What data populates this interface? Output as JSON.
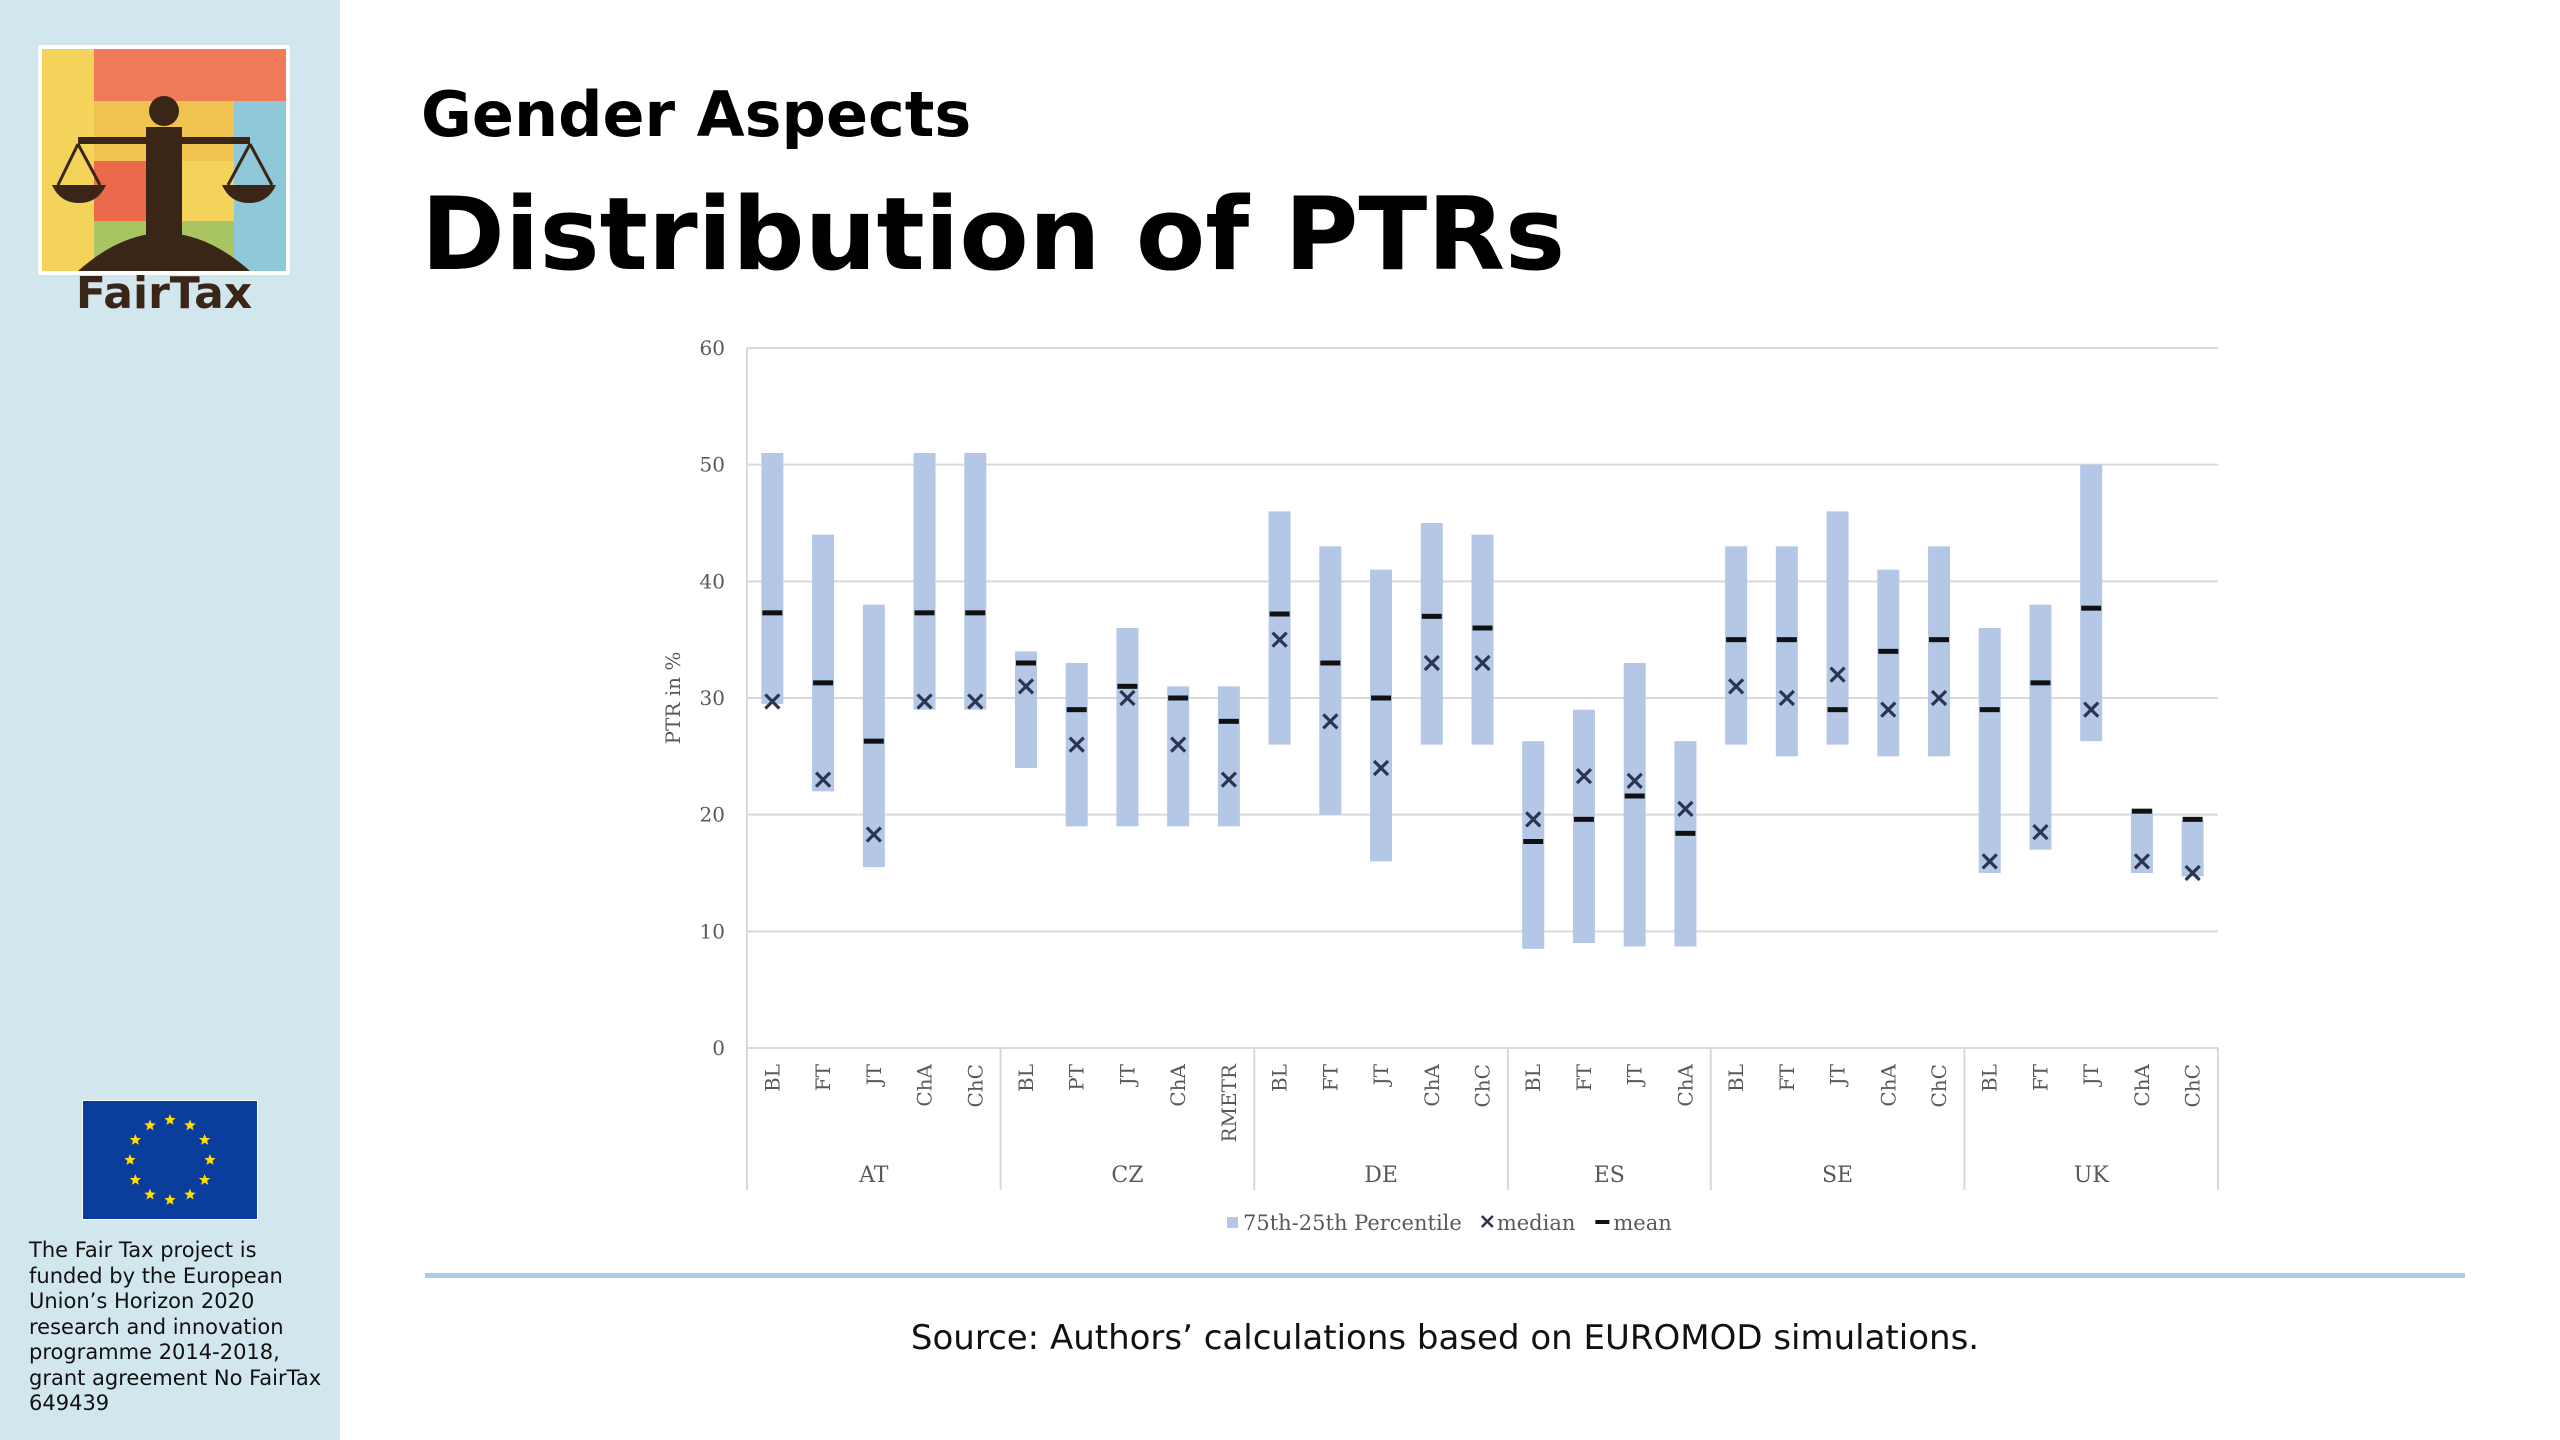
{
  "logo": {
    "name": "FairTax"
  },
  "header": {
    "subtitle": "Gender Aspects",
    "title": "Distribution of PTRs"
  },
  "funding": {
    "text": "The Fair Tax project is funded by the European Union’s Horizon 2020 research and innovation programme 2014-2018, grant agreement No FairTax 649439"
  },
  "source": "Source: Authors’ calculations based on EUROMOD simulations.",
  "colors": {
    "sidebar": "#d2e6ee",
    "bar": "#b4c7e7",
    "marker": "#2b3550",
    "divider": "#a7cfdf"
  },
  "chart_data": {
    "type": "box",
    "ylabel": "PTR in %",
    "ylim": [
      0,
      60
    ],
    "yticks": [
      0,
      10,
      20,
      30,
      40,
      50,
      60
    ],
    "legend": [
      {
        "label": "75th-25th Percentile",
        "symbol": "bar"
      },
      {
        "label": "median",
        "symbol": "x"
      },
      {
        "label": "mean",
        "symbol": "dash"
      }
    ],
    "groups": [
      {
        "name": "AT",
        "items": [
          {
            "label": "BL",
            "q1": 29.5,
            "q3": 51.0,
            "median": 29.7,
            "mean": 37.3
          },
          {
            "label": "FT",
            "q1": 22.0,
            "q3": 44.0,
            "median": 23.0,
            "mean": 31.3
          },
          {
            "label": "JT",
            "q1": 15.5,
            "q3": 38.0,
            "median": 18.3,
            "mean": 26.3
          },
          {
            "label": "ChA",
            "q1": 29.0,
            "q3": 51.0,
            "median": 29.7,
            "mean": 37.3
          },
          {
            "label": "ChC",
            "q1": 29.0,
            "q3": 51.0,
            "median": 29.7,
            "mean": 37.3
          }
        ]
      },
      {
        "name": "CZ",
        "items": [
          {
            "label": "BL",
            "q1": 24.0,
            "q3": 34.0,
            "median": 31.0,
            "mean": 33.0
          },
          {
            "label": "PT",
            "q1": 19.0,
            "q3": 33.0,
            "median": 26.0,
            "mean": 29.0
          },
          {
            "label": "JT",
            "q1": 19.0,
            "q3": 36.0,
            "median": 30.0,
            "mean": 31.0
          },
          {
            "label": "ChA",
            "q1": 19.0,
            "q3": 31.0,
            "median": 26.0,
            "mean": 30.0
          },
          {
            "label": "RMETR",
            "q1": 19.0,
            "q3": 31.0,
            "median": 23.0,
            "mean": 28.0
          }
        ]
      },
      {
        "name": "DE",
        "items": [
          {
            "label": "BL",
            "q1": 26.0,
            "q3": 46.0,
            "median": 35.0,
            "mean": 37.2
          },
          {
            "label": "FT",
            "q1": 20.0,
            "q3": 43.0,
            "median": 28.0,
            "mean": 33.0
          },
          {
            "label": "JT",
            "q1": 16.0,
            "q3": 41.0,
            "median": 24.0,
            "mean": 30.0
          },
          {
            "label": "ChA",
            "q1": 26.0,
            "q3": 45.0,
            "median": 33.0,
            "mean": 37.0
          },
          {
            "label": "ChC",
            "q1": 26.0,
            "q3": 44.0,
            "median": 33.0,
            "mean": 36.0
          }
        ]
      },
      {
        "name": "ES",
        "items": [
          {
            "label": "BL",
            "q1": 8.5,
            "q3": 26.3,
            "median": 19.6,
            "mean": 17.7
          },
          {
            "label": "FT",
            "q1": 9.0,
            "q3": 29.0,
            "median": 23.3,
            "mean": 19.6
          },
          {
            "label": "JT",
            "q1": 8.7,
            "q3": 33.0,
            "median": 22.9,
            "mean": 21.6
          },
          {
            "label": "ChA",
            "q1": 8.7,
            "q3": 26.3,
            "median": 20.5,
            "mean": 18.4
          }
        ]
      },
      {
        "name": "SE",
        "items": [
          {
            "label": "BL",
            "q1": 26.0,
            "q3": 43.0,
            "median": 31.0,
            "mean": 35.0
          },
          {
            "label": "FT",
            "q1": 25.0,
            "q3": 43.0,
            "median": 30.0,
            "mean": 35.0
          },
          {
            "label": "JT",
            "q1": 26.0,
            "q3": 46.0,
            "median": 32.0,
            "mean": 29.0
          },
          {
            "label": "ChA",
            "q1": 25.0,
            "q3": 41.0,
            "median": 29.0,
            "mean": 34.0
          },
          {
            "label": "ChC",
            "q1": 25.0,
            "q3": 43.0,
            "median": 30.0,
            "mean": 35.0
          }
        ]
      },
      {
        "name": "UK",
        "items": [
          {
            "label": "BL",
            "q1": 15.0,
            "q3": 36.0,
            "median": 16.0,
            "mean": 29.0
          },
          {
            "label": "FT",
            "q1": 17.0,
            "q3": 38.0,
            "median": 18.5,
            "mean": 31.3
          },
          {
            "label": "JT",
            "q1": 26.3,
            "q3": 50.0,
            "median": 29.0,
            "mean": 37.7
          },
          {
            "label": "ChA",
            "q1": 15.0,
            "q3": 20.5,
            "median": 16.0,
            "mean": 20.3
          },
          {
            "label": "ChC",
            "q1": 14.7,
            "q3": 19.5,
            "median": 15.0,
            "mean": 19.6
          }
        ]
      }
    ]
  }
}
